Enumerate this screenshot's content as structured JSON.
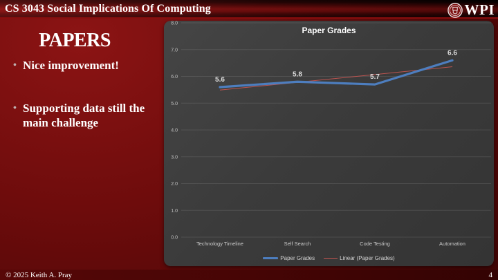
{
  "header": {
    "title": "CS 3043 Social Implications Of Computing",
    "logo_text": "WPI"
  },
  "slide": {
    "title": "PAPERS",
    "bullets": [
      "Nice improvement!",
      "Supporting data still the main challenge"
    ]
  },
  "chart_data": {
    "type": "line",
    "title": "Paper Grades",
    "categories": [
      "Technology Timeline",
      "Self Search",
      "Code Testing",
      "Automation"
    ],
    "series": [
      {
        "name": "Paper Grades",
        "values": [
          5.6,
          5.8,
          5.7,
          6.6
        ],
        "color": "#4d7ebf"
      }
    ],
    "trendline": {
      "name": "Linear (Paper Grades)",
      "color": "#bd5450"
    },
    "ylim": [
      0,
      8
    ],
    "ytick_step": 1.0,
    "grid": true,
    "legend_position": "bottom"
  },
  "footer": {
    "copyright": "© 2025 Keith A. Pray",
    "page_number": "4"
  }
}
